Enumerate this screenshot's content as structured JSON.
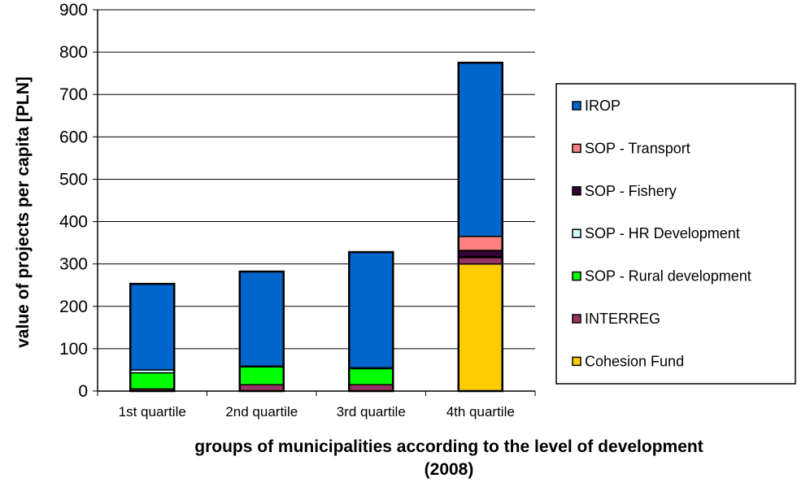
{
  "chart_data": {
    "type": "bar",
    "stacked": true,
    "categories": [
      "1st quartile",
      "2nd quartile",
      "3rd quartile",
      "4th quartile"
    ],
    "series": [
      {
        "name": "Cohesion Fund",
        "color": "#FFCC00",
        "values": [
          0,
          0,
          0,
          300
        ]
      },
      {
        "name": "INTERREG",
        "color": "#993366",
        "values": [
          5,
          15,
          15,
          15
        ]
      },
      {
        "name": "SOP - Rural development",
        "color": "#00FF00",
        "values": [
          38,
          42,
          38,
          0
        ]
      },
      {
        "name": "SOP - HR Development",
        "color": "#CCFFFF",
        "values": [
          7,
          2,
          2,
          2
        ]
      },
      {
        "name": "SOP - Fishery",
        "color": "#330033",
        "values": [
          0,
          0,
          0,
          15
        ]
      },
      {
        "name": "SOP - Transport",
        "color": "#FF8080",
        "values": [
          0,
          0,
          0,
          33
        ]
      },
      {
        "name": "IROP",
        "color": "#0066CC",
        "values": [
          203,
          223,
          273,
          410
        ]
      }
    ],
    "ylabel": "value of projects per capita [PLN]",
    "xlabel": "groups of municipalities according to the level of development (2008)",
    "xlabel_lines": [
      "groups of municipalities according to the level of development",
      "(2008)"
    ],
    "ylim": [
      0,
      900
    ],
    "yticks": [
      0,
      100,
      200,
      300,
      400,
      500,
      600,
      700,
      800,
      900
    ],
    "grid": true,
    "legend_position": "right",
    "legend_order": [
      "IROP",
      "SOP - Transport",
      "SOP - Fishery",
      "SOP - HR Development",
      "SOP - Rural development",
      "INTERREG",
      "Cohesion Fund"
    ]
  }
}
